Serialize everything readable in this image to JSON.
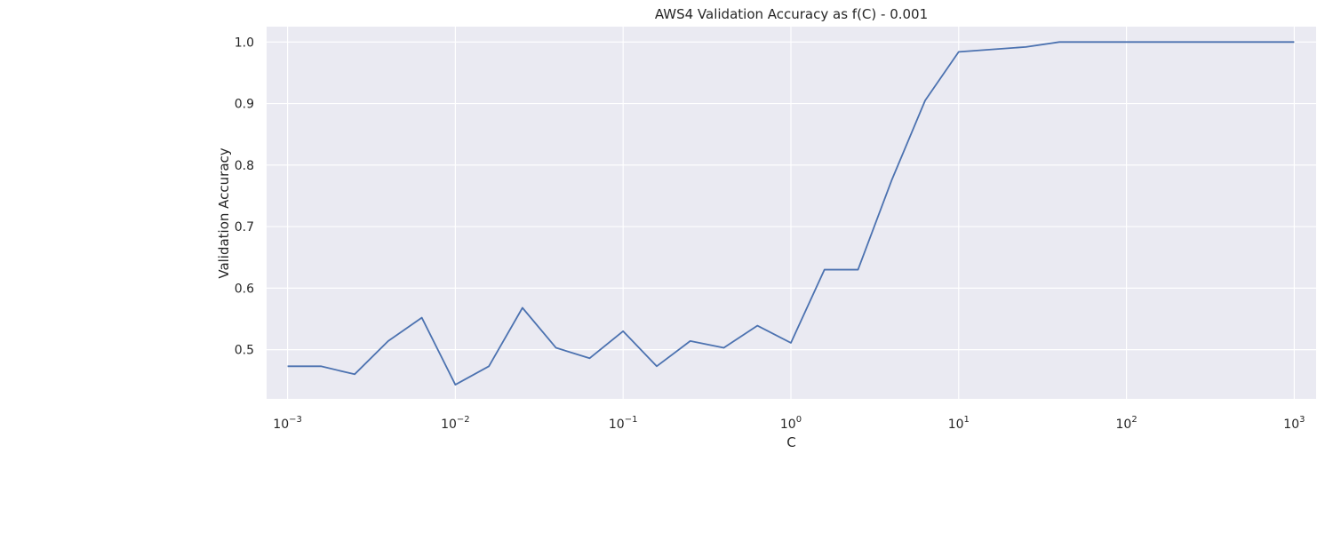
{
  "chart_data": {
    "type": "line",
    "title": "AWS4 Validation Accuracy as f(C) - 0.001",
    "xlabel": "C",
    "ylabel": "Validation Accuracy",
    "xscale": "log",
    "xlim": [
      0.00075,
      1350
    ],
    "ylim": [
      0.42,
      1.025
    ],
    "grid": true,
    "background_color": "#EAEAF2",
    "grid_color": "#FFFFFF",
    "line_color": "#4C72B0",
    "x_ticks": [
      {
        "base": "10",
        "exp": "−3",
        "value": 0.001
      },
      {
        "base": "10",
        "exp": "−2",
        "value": 0.01
      },
      {
        "base": "10",
        "exp": "−1",
        "value": 0.1
      },
      {
        "base": "10",
        "exp": "0",
        "value": 1
      },
      {
        "base": "10",
        "exp": "1",
        "value": 10
      },
      {
        "base": "10",
        "exp": "2",
        "value": 100
      },
      {
        "base": "10",
        "exp": "3",
        "value": 1000
      }
    ],
    "y_ticks": [
      {
        "label": "0.5",
        "value": 0.5
      },
      {
        "label": "0.6",
        "value": 0.6
      },
      {
        "label": "0.7",
        "value": 0.7
      },
      {
        "label": "0.8",
        "value": 0.8
      },
      {
        "label": "0.9",
        "value": 0.9
      },
      {
        "label": "1.0",
        "value": 1.0
      }
    ],
    "series": [
      {
        "x": [
          0.001,
          0.00158,
          0.00251,
          0.00398,
          0.00631,
          0.01,
          0.01585,
          0.02512,
          0.03981,
          0.0631,
          0.1,
          0.1585,
          0.2512,
          0.3981,
          0.631,
          1.0,
          1.585,
          2.512,
          3.981,
          6.31,
          10.0,
          15.85,
          25.12,
          39.81,
          63.1,
          100.0,
          158.5,
          251.2,
          398.1,
          631.0,
          1000.0
        ],
        "y": [
          0.473,
          0.473,
          0.46,
          0.514,
          0.552,
          0.443,
          0.473,
          0.568,
          0.503,
          0.486,
          0.53,
          0.473,
          0.514,
          0.503,
          0.539,
          0.511,
          0.63,
          0.63,
          0.775,
          0.905,
          0.984,
          0.988,
          0.992,
          1.0,
          1.0,
          1.0,
          1.0,
          1.0,
          1.0,
          1.0,
          1.0
        ]
      }
    ]
  }
}
